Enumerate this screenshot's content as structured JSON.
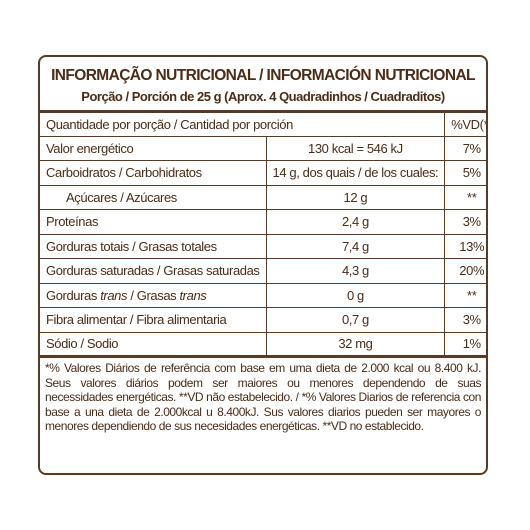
{
  "title": "INFORMAÇÃO NUTRICIONAL / INFORMACIÓN NUTRICIONAL",
  "subtitle": "Porção / Porción de 25 g (Aprox. 4 Quadradinhos / Cuadraditos)",
  "table": {
    "header": [
      "Quantidade por porção / Cantidad por porción",
      "%VD(*)"
    ],
    "rows": [
      {
        "label": [
          "Valor energético"
        ],
        "amount": "130 kcal = 546 kJ",
        "dv": "7%"
      },
      {
        "label": [
          "Carboidratos / Carbohidratos"
        ],
        "amount": "14 g, dos quais / de los cuales:",
        "dv": "5%"
      },
      {
        "label": [
          "Açúcares / Azúcares"
        ],
        "amount": "12 g",
        "dv": "**",
        "indent": true
      },
      {
        "label": [
          "Proteínas"
        ],
        "amount": "2,4 g",
        "dv": "3%"
      },
      {
        "label": [
          "Gorduras totais / Grasas totales"
        ],
        "amount": "7,4 g",
        "dv": "13%"
      },
      {
        "label": [
          "Gorduras saturadas / Grasas saturadas"
        ],
        "amount": "4,3 g",
        "dv": "20%"
      },
      {
        "label": [
          "Gorduras ",
          "trans",
          " / Grasas ",
          "trans"
        ],
        "amount": "0 g",
        "dv": "**"
      },
      {
        "label": [
          "Fibra alimentar / Fibra alimentaria"
        ],
        "amount": "0,7 g",
        "dv": "3%"
      },
      {
        "label": [
          "Sódio / Sodio"
        ],
        "amount": "32 mg",
        "dv": "1%"
      }
    ]
  },
  "footnote": "*% Valores Diários de referência com base em uma dieta de 2.000 kcal ou 8.400 kJ. Seus valores diários podem ser maiores ou menores dependendo de suas necessidades energéticas. **VD não estabelecido. / *% Valores Diarios de referencia con base a una dieta de 2.000kcal u 8.400kJ. Sus valores diarios pueden ser mayores o menores dependiendo de sus necesidades energéticas. **VD no establecido."
}
